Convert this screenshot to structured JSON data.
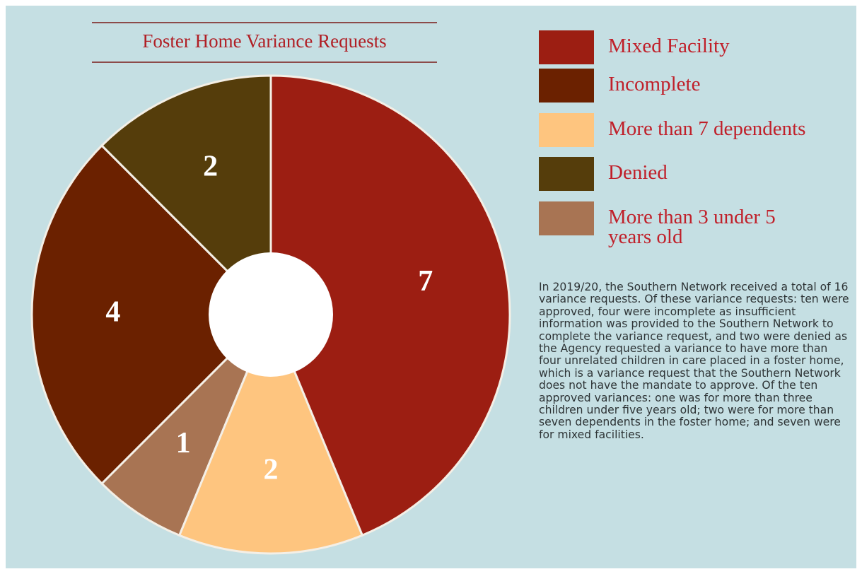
{
  "chart_data": {
    "type": "pie",
    "title": "Foster Home Variance Requests",
    "categories": [
      "Mixed Facility",
      "Incomplete",
      "More than 7 dependents",
      "Denied",
      "More than 3 under 5 years old"
    ],
    "values": [
      7,
      4,
      2,
      2,
      1
    ],
    "colors": [
      "#9c1e12",
      "#6b2100",
      "#fec57f",
      "#553d0b",
      "#a87453"
    ],
    "donut": true
  },
  "note": "In 2019/20, the Southern Network received a total of 16 variance requests. Of these variance requests: ten were approved, four were incomplete as insufficient information was provided to the Southern Network to complete the variance request, and two were denied as the Agency requested a variance to have more than four unrelated children in care placed in a foster home, which is a variance request that the Southern Network does not have the mandate to approve.  Of the ten approved variances: one was for more than three children under five years old; two were for more than seven dependents in the foster home; and seven were for mixed facilities."
}
